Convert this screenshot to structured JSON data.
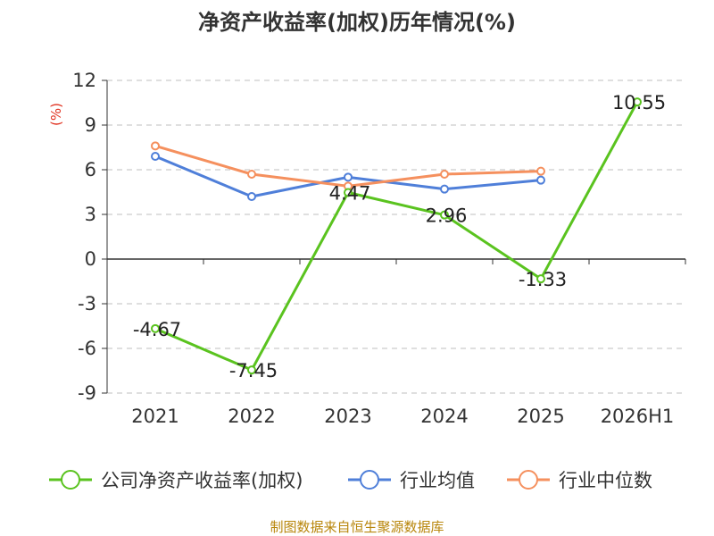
{
  "chart_data": {
    "type": "line",
    "title": "净资产收益率(加权)历年情况(%)",
    "ylabel": "(%)",
    "xlabel": "",
    "categories": [
      "2021",
      "2022",
      "2023",
      "2024",
      "2025",
      "2026H1"
    ],
    "y_ticks": [
      12,
      9,
      6,
      3,
      0,
      -3,
      -6,
      -9
    ],
    "ylim": [
      -9,
      12
    ],
    "grid": true,
    "legend_position": "bottom",
    "series": [
      {
        "name": "公司净资产收益率(加权)",
        "color": "#5ac31f",
        "values": [
          -4.67,
          -7.45,
          4.47,
          2.96,
          -1.33,
          10.55
        ],
        "labels": [
          "-4.67",
          "-7.45",
          "4.47",
          "2.96",
          "-1.33",
          "10.55"
        ]
      },
      {
        "name": "行业均值",
        "color": "#4f7fd9",
        "values": [
          6.9,
          4.2,
          5.5,
          4.7,
          5.3,
          null
        ]
      },
      {
        "name": "行业中位数",
        "color": "#f5905e",
        "values": [
          7.6,
          5.7,
          4.9,
          5.7,
          5.9,
          null
        ]
      }
    ]
  },
  "source_text": "制图数据来自恒生聚源数据库"
}
